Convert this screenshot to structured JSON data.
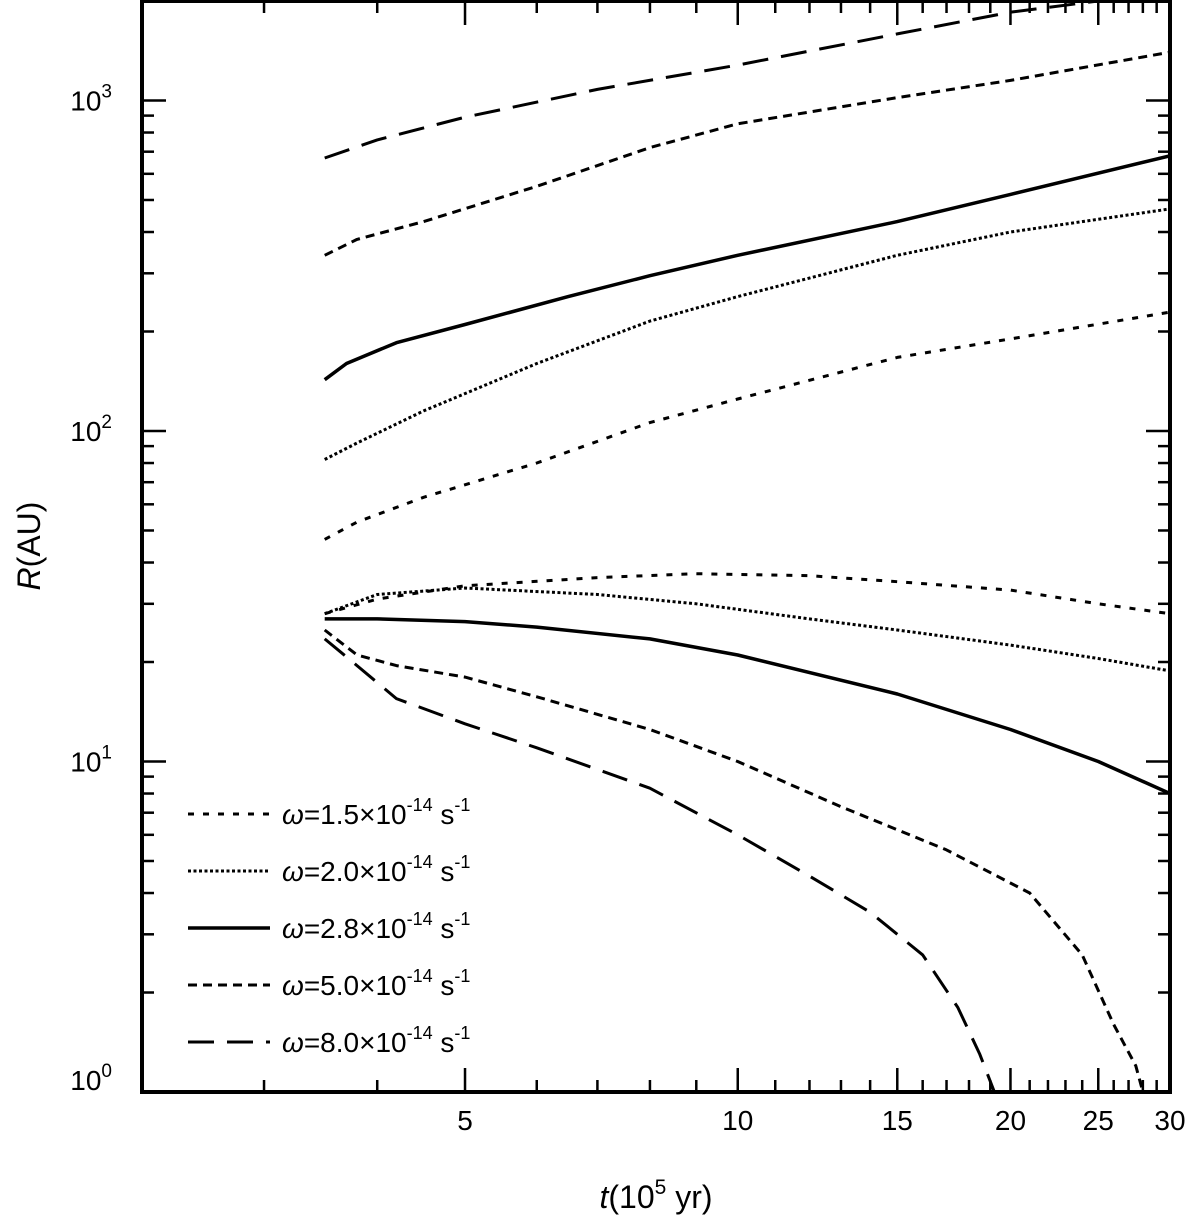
{
  "chart_data": {
    "type": "line",
    "title": "",
    "xlabel": {
      "var": "t",
      "open": "(10",
      "sup": "5",
      "close": " yr)"
    },
    "ylabel": {
      "var": "R",
      "rest": "(AU)"
    },
    "x_scale": "log",
    "y_scale": "log",
    "xlim": [
      2.2,
      30
    ],
    "ylim": [
      1,
      2000
    ],
    "x_ticks": [
      {
        "value": 5,
        "label": "5"
      },
      {
        "value": 10,
        "label": "10"
      },
      {
        "value": 15,
        "label": "15"
      },
      {
        "value": 20,
        "label": "20"
      },
      {
        "value": 25,
        "label": "25"
      },
      {
        "value": 30,
        "label": "30"
      }
    ],
    "y_ticks": [
      {
        "value": 1,
        "base": "10",
        "exp": "0"
      },
      {
        "value": 10,
        "base": "10",
        "exp": "1"
      },
      {
        "value": 100,
        "base": "10",
        "exp": "2"
      },
      {
        "value": 1000,
        "base": "10",
        "exp": "3"
      }
    ],
    "grid": false,
    "legend_position": "bottom-left",
    "series": [
      {
        "name": {
          "sym": "ω",
          "val": "=1.5×10",
          "exp": "-14",
          "unit": " s",
          "uexp": "-1"
        },
        "style": "sparse-dash",
        "branches": [
          {
            "x": [
              3.5,
              3.8,
              4.5,
              6,
              8,
              10,
              15,
              20,
              30
            ],
            "y": [
              47,
              53,
              63,
              80,
              106,
              125,
              167,
              190,
              229
            ]
          },
          {
            "x": [
              3.5,
              4,
              5,
              7,
              9,
              12,
              15,
              20,
              25,
              30
            ],
            "y": [
              28,
              31,
              34,
              36,
              37,
              36.5,
              35,
              33,
              30,
              28
            ]
          }
        ]
      },
      {
        "name": {
          "sym": "ω",
          "val": "=2.0×10",
          "exp": "-14",
          "unit": " s",
          "uexp": "-1"
        },
        "style": "dotted",
        "branches": [
          {
            "x": [
              3.5,
              3.8,
              4.5,
              6,
              8,
              10,
              15,
              20,
              30
            ],
            "y": [
              82,
              92,
              115,
              160,
              215,
              255,
              340,
              400,
              470
            ]
          },
          {
            "x": [
              3.5,
              4,
              5,
              7,
              9,
              12,
              15,
              20,
              25,
              30
            ],
            "y": [
              28,
              32,
              33.5,
              32,
              30,
              27,
              25,
              22.5,
              20.5,
              18.8
            ]
          }
        ]
      },
      {
        "name": {
          "sym": "ω",
          "val": "=2.8×10",
          "exp": "-14",
          "unit": " s",
          "uexp": "-1"
        },
        "style": "solid",
        "branches": [
          {
            "x": [
              3.5,
              3.7,
              4.2,
              5,
              6.5,
              8,
              10,
              15,
              20,
              30
            ],
            "y": [
              143,
              160,
              185,
              210,
              255,
              295,
              340,
              430,
              520,
              680
            ]
          },
          {
            "x": [
              3.5,
              4,
              5,
              6,
              8,
              10,
              15,
              20,
              25,
              30
            ],
            "y": [
              27,
              27,
              26.5,
              25.5,
              23.5,
              21,
              16,
              12.5,
              10,
              8
            ]
          }
        ]
      },
      {
        "name": {
          "sym": "ω",
          "val": "=5.0×10",
          "exp": "-14",
          "unit": " s",
          "uexp": "-1"
        },
        "style": "short-dash",
        "branches": [
          {
            "x": [
              3.5,
              3.8,
              4.5,
              6,
              8,
              10,
              15,
              20,
              30
            ],
            "y": [
              340,
              380,
              430,
              550,
              720,
              850,
              1020,
              1150,
              1400
            ]
          },
          {
            "x": [
              3.5,
              3.8,
              4.2,
              5,
              6,
              8,
              10,
              13,
              17,
              21,
              24,
              26,
              27.5,
              28
            ],
            "y": [
              25,
              21,
              19.5,
              18,
              15.7,
              12.5,
              10,
              7.3,
              5.4,
              4,
              2.6,
              1.6,
              1.2,
              1
            ]
          }
        ]
      },
      {
        "name": {
          "sym": "ω",
          "val": "=8.0×10",
          "exp": "-14",
          "unit": " s",
          "uexp": "-1"
        },
        "style": "long-dash",
        "branches": [
          {
            "x": [
              3.5,
              4,
              5,
              7,
              10,
              15,
              20,
              25,
              30
            ],
            "y": [
              670,
              760,
              890,
              1080,
              1280,
              1590,
              1850,
              2000,
              2000
            ]
          },
          {
            "x": [
              3.5,
              3.8,
              4.2,
              5,
              6,
              8,
              10,
              12,
              14,
              16,
              17.5,
              18.5,
              19.2
            ],
            "y": [
              23.5,
              19.5,
              15.5,
              13,
              11,
              8.3,
              6,
              4.5,
              3.5,
              2.6,
              1.8,
              1.3,
              1
            ]
          }
        ]
      }
    ]
  }
}
